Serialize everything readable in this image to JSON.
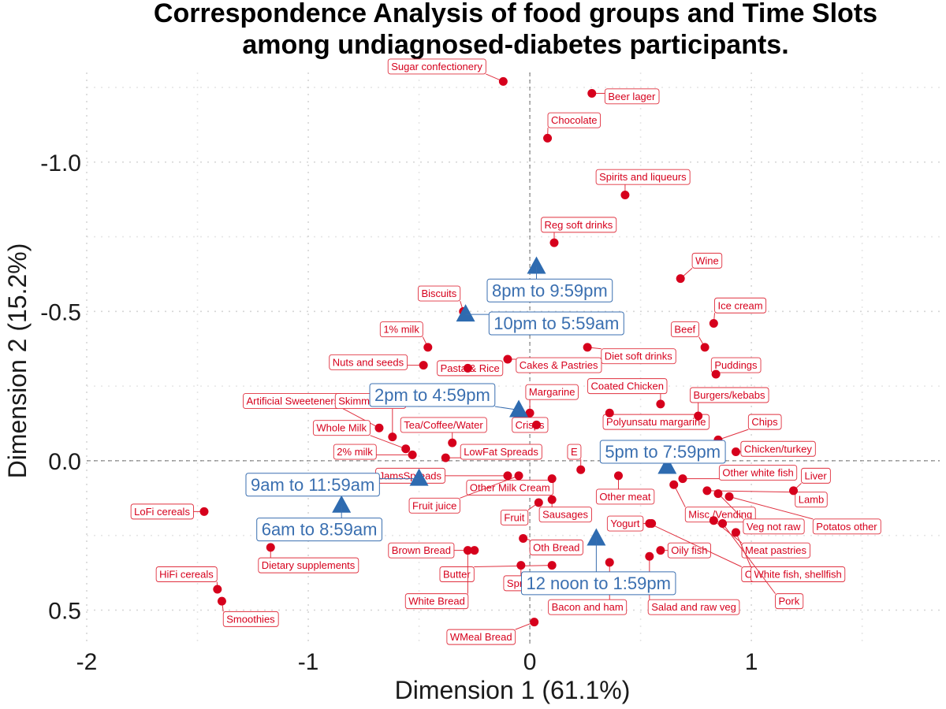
{
  "chart_data": {
    "type": "scatter",
    "title": "Correspondence Analysis of food groups and Time Slots among undiagnosed-diabetes participants.",
    "title_lines": [
      "Correspondence Analysis of food groups and Time Slots",
      "among undiagnosed-diabetes participants."
    ],
    "xlabel": "Dimension 1 (61.1%)",
    "ylabel": "Dimension 2 (15.2%)",
    "xlim": [
      -2.0,
      1.85
    ],
    "ylim": [
      0.62,
      -1.3
    ],
    "y_reversed": true,
    "x_ticks": [
      -2,
      -1,
      0,
      1
    ],
    "x_tick_labels": [
      "-2",
      "-1",
      "0",
      "1"
    ],
    "y_ticks": [
      -1.0,
      -0.5,
      0.0,
      0.5
    ],
    "y_tick_labels": [
      "-1.0",
      "-0.5",
      "0.0",
      "0.5"
    ],
    "colors": {
      "food": "#d6001c",
      "time": "#2e6bb0"
    },
    "series": [
      {
        "name": "Food groups",
        "marker": "circle",
        "points": [
          {
            "label": "Sugar confectionery",
            "x": -0.12,
            "y": -1.27,
            "lx": -0.42,
            "ly": -1.32
          },
          {
            "label": "Beer lager",
            "x": 0.28,
            "y": -1.23,
            "lx": 0.46,
            "ly": -1.22
          },
          {
            "label": "Chocolate",
            "x": 0.08,
            "y": -1.08,
            "lx": 0.2,
            "ly": -1.14
          },
          {
            "label": "Spirits and liqueurs",
            "x": 0.43,
            "y": -0.89,
            "lx": 0.51,
            "ly": -0.95
          },
          {
            "label": "Reg soft drinks",
            "x": 0.11,
            "y": -0.73,
            "lx": 0.22,
            "ly": -0.79
          },
          {
            "label": "Wine",
            "x": 0.68,
            "y": -0.61,
            "lx": 0.8,
            "ly": -0.67
          },
          {
            "label": "Biscuits",
            "x": -0.3,
            "y": -0.5,
            "lx": -0.41,
            "ly": -0.56
          },
          {
            "label": "Ice cream",
            "x": 0.83,
            "y": -0.46,
            "lx": 0.95,
            "ly": -0.52
          },
          {
            "label": "1% milk",
            "x": -0.46,
            "y": -0.38,
            "lx": -0.58,
            "ly": -0.44
          },
          {
            "label": "Beef",
            "x": 0.79,
            "y": -0.38,
            "lx": 0.7,
            "ly": -0.44
          },
          {
            "label": "Diet soft drinks",
            "x": 0.26,
            "y": -0.38,
            "lx": 0.49,
            "ly": -0.35
          },
          {
            "label": "Nuts and seeds",
            "x": -0.48,
            "y": -0.32,
            "lx": -0.73,
            "ly": -0.33
          },
          {
            "label": "Pasta & Rice",
            "x": -0.28,
            "y": -0.31,
            "lx": -0.27,
            "ly": -0.31
          },
          {
            "label": "Cakes & Pastries",
            "x": -0.1,
            "y": -0.34,
            "lx": 0.13,
            "ly": -0.32
          },
          {
            "label": "Puddings",
            "x": 0.84,
            "y": -0.29,
            "lx": 0.93,
            "ly": -0.32
          },
          {
            "label": "Coated Chicken",
            "x": 0.59,
            "y": -0.19,
            "lx": 0.44,
            "ly": -0.25
          },
          {
            "label": "Burgers/kebabs",
            "x": 0.76,
            "y": -0.15,
            "lx": 0.9,
            "ly": -0.22
          },
          {
            "label": "Margarine",
            "x": 0.0,
            "y": -0.16,
            "lx": 0.1,
            "ly": -0.23
          },
          {
            "label": "Artificial Sweeteners",
            "x": -0.68,
            "y": -0.11,
            "lx": -1.07,
            "ly": -0.2
          },
          {
            "label": "Skimmed Milk",
            "x": -0.62,
            "y": -0.08,
            "lx": -0.72,
            "ly": -0.2
          },
          {
            "label": "Polyunsatu margarine",
            "x": 0.36,
            "y": -0.16,
            "lx": 0.57,
            "ly": -0.13
          },
          {
            "label": "Crisps",
            "x": 0.03,
            "y": -0.12,
            "lx": 0.0,
            "ly": -0.12
          },
          {
            "label": "Tea/Coffee/Water",
            "x": -0.35,
            "y": -0.06,
            "lx": -0.39,
            "ly": -0.12
          },
          {
            "label": "Whole Milk",
            "x": -0.56,
            "y": -0.04,
            "lx": -0.85,
            "ly": -0.11
          },
          {
            "label": "Chips",
            "x": 0.85,
            "y": -0.07,
            "lx": 1.06,
            "ly": -0.13
          },
          {
            "label": "2% milk",
            "x": -0.53,
            "y": -0.02,
            "lx": -0.79,
            "ly": -0.03
          },
          {
            "label": "LowFat Spreads",
            "x": -0.38,
            "y": -0.01,
            "lx": -0.13,
            "ly": -0.03
          },
          {
            "label": "Chicken/turkey",
            "x": 0.93,
            "y": -0.03,
            "lx": 1.12,
            "ly": -0.04
          },
          {
            "label": "E",
            "x": 0.23,
            "y": 0.03,
            "lx": 0.2,
            "ly": -0.03
          },
          {
            "label": "JamsSpreads",
            "x": -0.1,
            "y": 0.05,
            "lx": -0.54,
            "ly": 0.05
          },
          {
            "label": "Other white fish",
            "x": 0.69,
            "y": 0.06,
            "lx": 1.03,
            "ly": 0.04
          },
          {
            "label": "Liver",
            "x": 1.19,
            "y": 0.1,
            "lx": 1.29,
            "ly": 0.05
          },
          {
            "label": "Other Milk Cream",
            "x": 0.1,
            "y": 0.06,
            "lx": -0.09,
            "ly": 0.09
          },
          {
            "label": "Fruit juice",
            "x": -0.05,
            "y": 0.05,
            "lx": -0.43,
            "ly": 0.15
          },
          {
            "label": "Other meat",
            "x": 0.4,
            "y": 0.05,
            "lx": 0.43,
            "ly": 0.12
          },
          {
            "label": "Lamb",
            "x": 0.8,
            "y": 0.1,
            "lx": 1.27,
            "ly": 0.13
          },
          {
            "label": "LoFi cereals",
            "x": -1.47,
            "y": 0.17,
            "lx": -1.66,
            "ly": 0.17
          },
          {
            "label": "Fruit",
            "x": 0.04,
            "y": 0.14,
            "lx": -0.07,
            "ly": 0.19
          },
          {
            "label": "Sausages",
            "x": 0.1,
            "y": 0.13,
            "lx": 0.16,
            "ly": 0.18
          },
          {
            "label": "Misc./Vending",
            "x": 0.65,
            "y": 0.08,
            "lx": 0.86,
            "ly": 0.18
          },
          {
            "label": "Yogurt",
            "x": 0.55,
            "y": 0.21,
            "lx": 0.43,
            "ly": 0.21
          },
          {
            "label": "Veg not raw",
            "x": 0.85,
            "y": 0.11,
            "lx": 1.1,
            "ly": 0.22
          },
          {
            "label": "Potatos other",
            "x": 0.9,
            "y": 0.12,
            "lx": 1.43,
            "ly": 0.22
          },
          {
            "label": "Dietary supplements",
            "x": -1.17,
            "y": 0.29,
            "lx": -1.0,
            "ly": 0.35
          },
          {
            "label": "Brown Bread",
            "x": -0.25,
            "y": 0.3,
            "lx": -0.49,
            "ly": 0.3
          },
          {
            "label": "Oth Bread",
            "x": -0.03,
            "y": 0.26,
            "lx": 0.12,
            "ly": 0.29
          },
          {
            "label": "Meat pastries",
            "x": 0.83,
            "y": 0.2,
            "lx": 1.11,
            "ly": 0.3
          },
          {
            "label": "Oily fish",
            "x": 0.59,
            "y": 0.3,
            "lx": 0.72,
            "ly": 0.3
          },
          {
            "label": "Butter",
            "x": 0.1,
            "y": 0.35,
            "lx": -0.33,
            "ly": 0.38
          },
          {
            "label": "Cheese",
            "x": 0.54,
            "y": 0.21,
            "lx": 1.05,
            "ly": 0.38
          },
          {
            "label": "White fish, shellfish",
            "x": 0.93,
            "y": 0.24,
            "lx": 1.21,
            "ly": 0.38
          },
          {
            "label": "HiFi cereals",
            "x": -1.41,
            "y": 0.43,
            "lx": -1.55,
            "ly": 0.38
          },
          {
            "label": "Spreads less",
            "x": -0.04,
            "y": 0.35,
            "lx": 0.03,
            "ly": 0.41
          },
          {
            "label": "White Bread",
            "x": -0.28,
            "y": 0.3,
            "lx": -0.42,
            "ly": 0.47
          },
          {
            "label": "Pork",
            "x": 0.87,
            "y": 0.21,
            "lx": 1.17,
            "ly": 0.47
          },
          {
            "label": "Bacon and ham",
            "x": 0.36,
            "y": 0.34,
            "lx": 0.26,
            "ly": 0.49
          },
          {
            "label": "Salad and raw veg",
            "x": 0.54,
            "y": 0.32,
            "lx": 0.74,
            "ly": 0.49
          },
          {
            "label": "Smoothies",
            "x": -1.39,
            "y": 0.47,
            "lx": -1.26,
            "ly": 0.53
          },
          {
            "label": "WMeal Bread",
            "x": 0.02,
            "y": 0.54,
            "lx": -0.22,
            "ly": 0.59
          }
        ]
      },
      {
        "name": "Time slots",
        "marker": "triangle",
        "points": [
          {
            "label": "8pm to 9:59pm",
            "x": 0.03,
            "y": -0.65,
            "lx": 0.09,
            "ly": -0.57
          },
          {
            "label": "10pm to 5:59am",
            "x": -0.29,
            "y": -0.49,
            "lx": 0.12,
            "ly": -0.46
          },
          {
            "label": "2pm to 4:59pm",
            "x": -0.05,
            "y": -0.17,
            "lx": -0.44,
            "ly": -0.22
          },
          {
            "label": "5pm to 7:59pm",
            "x": 0.62,
            "y": 0.02,
            "lx": 0.6,
            "ly": -0.03
          },
          {
            "label": "9am to 11:59am",
            "x": -0.5,
            "y": 0.06,
            "lx": -0.98,
            "ly": 0.08
          },
          {
            "label": "6am to 8:59am",
            "x": -0.85,
            "y": 0.15,
            "lx": -0.95,
            "ly": 0.23
          },
          {
            "label": "12 noon to 1:59pm",
            "x": 0.3,
            "y": 0.26,
            "lx": 0.31,
            "ly": 0.41
          }
        ]
      }
    ]
  }
}
